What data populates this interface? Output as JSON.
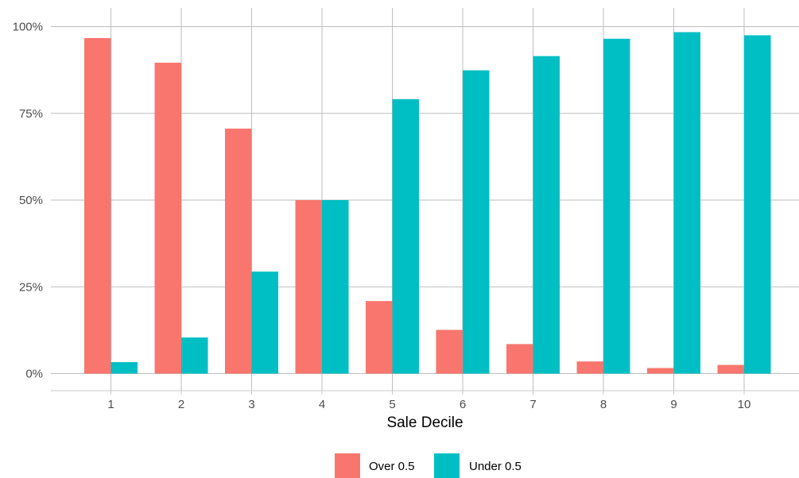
{
  "colors": {
    "over": "#F8766D",
    "under": "#00BFC4"
  },
  "chart_data": {
    "type": "bar",
    "title": "",
    "xlabel": "Sale Decile",
    "ylabel": "",
    "categories": [
      "1",
      "2",
      "3",
      "4",
      "5",
      "6",
      "7",
      "8",
      "9",
      "10"
    ],
    "ylim": [
      0,
      1
    ],
    "yticks": [
      0,
      0.25,
      0.5,
      0.75,
      1
    ],
    "ytick_labels": [
      "0%",
      "25%",
      "50%",
      "75%",
      "100%"
    ],
    "series": [
      {
        "name": "Over 0.5",
        "color": "#F8766D",
        "values": [
          0.967,
          0.896,
          0.706,
          0.5,
          0.209,
          0.126,
          0.085,
          0.035,
          0.016,
          0.025
        ]
      },
      {
        "name": "Under 0.5",
        "color": "#00BFC4",
        "values": [
          0.033,
          0.104,
          0.294,
          0.5,
          0.791,
          0.874,
          0.915,
          0.965,
          0.984,
          0.975
        ]
      }
    ],
    "grid": true,
    "legend_position": "bottom"
  }
}
